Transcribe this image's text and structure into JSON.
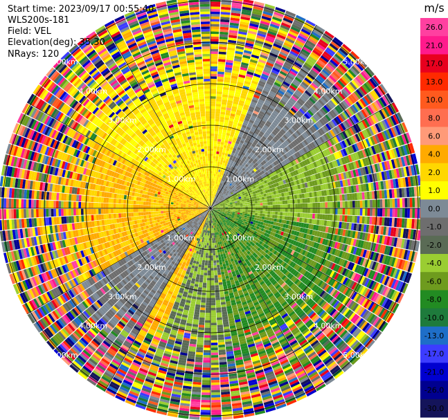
{
  "header": {
    "start_time": "Start time: 2023/09/17 00:55:40",
    "instrument": "WLS200s-181",
    "field": "Field: VEL",
    "elevation": "Elevation(deg): 35.30",
    "nrays": "NRays: 120"
  },
  "colorbar": {
    "unit": "m/s",
    "ticks": [
      "26.0",
      "21.0",
      "17.0",
      "13.0",
      "10.0",
      "8.0",
      "6.0",
      "4.0",
      "2.0",
      "1.0",
      "0.0",
      "-1.0",
      "-2.0",
      "-4.0",
      "-6.0",
      "-8.0",
      "-10.0",
      "-13.0",
      "-17.0",
      "-21.0",
      "-26.0",
      "-30.0"
    ],
    "colors": [
      "#ff40a0",
      "#ff1a8c",
      "#e8001e",
      "#ff2a00",
      "#ff5a1e",
      "#ff6e50",
      "#ff9a78",
      "#ffaa00",
      "#ffd700",
      "#ffff00",
      "#7d8a96",
      "#6e6e6e",
      "#5a6b55",
      "#9acd32",
      "#6e9b1e",
      "#228b22",
      "#1e7b3c",
      "#1e6ec8",
      "#3c3cff",
      "#0000d0",
      "#000090",
      "#14145a",
      "#0a0a3c"
    ]
  },
  "chart_data": {
    "type": "ppi",
    "field": "VEL",
    "nrays": 120,
    "elevation_deg": 35.3,
    "range_rings_km": [
      1.0,
      2.0,
      3.0,
      4.0,
      5.0
    ],
    "ring_labels": [
      "1.00km",
      "2.00km",
      "3.00km",
      "4.00km",
      "5.00km"
    ],
    "vmin": -30.0,
    "vmax": 26.0,
    "azimuth_sectors": [
      {
        "from_deg": 200,
        "to_deg": 300,
        "dominant_velocity": 4.0
      },
      {
        "from_deg": 300,
        "to_deg": 360,
        "dominant_velocity": 2.0
      },
      {
        "from_deg": 0,
        "to_deg": 20,
        "dominant_velocity": 2.0
      },
      {
        "from_deg": 20,
        "to_deg": 60,
        "dominant_velocity": 0.0
      },
      {
        "from_deg": 60,
        "to_deg": 100,
        "dominant_velocity": -4.0
      },
      {
        "from_deg": 100,
        "to_deg": 170,
        "dominant_velocity": -6.0
      },
      {
        "from_deg": 170,
        "to_deg": 200,
        "dominant_velocity": -2.0
      },
      {
        "from_deg": 210,
        "to_deg": 240,
        "dominant_velocity": 0.0
      }
    ],
    "clean_range_km": 3.0
  }
}
